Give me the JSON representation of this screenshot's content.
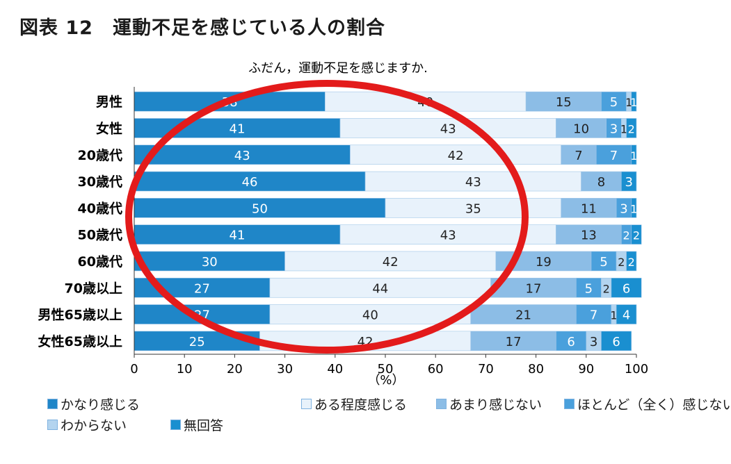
{
  "page": {
    "title": "図表 12　運動不足を感じている人の割合"
  },
  "chart_data": {
    "type": "bar",
    "orientation": "horizontal",
    "stacked": true,
    "title": "ふだん，運動不足を感じますか.",
    "xlabel": "（%）",
    "ylabel": "",
    "xlim": [
      0,
      100
    ],
    "xticks": [
      0,
      10,
      20,
      30,
      40,
      50,
      60,
      70,
      80,
      90,
      100
    ],
    "categories": [
      "男性",
      "女性",
      "20歳代",
      "30歳代",
      "40歳代",
      "50歳代",
      "60歳代",
      "70歳以上",
      "男性65歳以上",
      "女性65歳以上"
    ],
    "series": [
      {
        "name": "かなり感じる",
        "color": "#1f86c8",
        "label_color": "#ffffff",
        "values": [
          38,
          41,
          43,
          46,
          50,
          41,
          30,
          27,
          27,
          25
        ]
      },
      {
        "name": "ある程度感じる",
        "color": "#e8f2fb",
        "label_color": "#222222",
        "values": [
          40,
          43,
          42,
          43,
          35,
          43,
          42,
          44,
          40,
          42
        ]
      },
      {
        "name": "あまり感じない",
        "color": "#8cbde6",
        "label_color": "#222222",
        "values": [
          15,
          10,
          7,
          8,
          11,
          13,
          19,
          17,
          21,
          17
        ]
      },
      {
        "name": "ほとんど（全く）感じない",
        "color": "#4aa0dc",
        "label_color": "#ffffff",
        "values": [
          5,
          3,
          7,
          0,
          3,
          2,
          5,
          5,
          7,
          6
        ]
      },
      {
        "name": "わからない",
        "color": "#b3d4ef",
        "label_color": "#222222",
        "values": [
          1,
          1,
          0,
          0,
          0,
          0,
          2,
          2,
          1,
          3
        ]
      },
      {
        "name": "無回答",
        "color": "#1a8fd0",
        "label_color": "#ffffff",
        "values": [
          1,
          2,
          1,
          3,
          1,
          2,
          2,
          6,
          4,
          6
        ]
      }
    ],
    "grid": false,
    "legend_position": "bottom",
    "annotation": "red ellipse highlighting the かなり感じる and ある程度感じる segments"
  }
}
